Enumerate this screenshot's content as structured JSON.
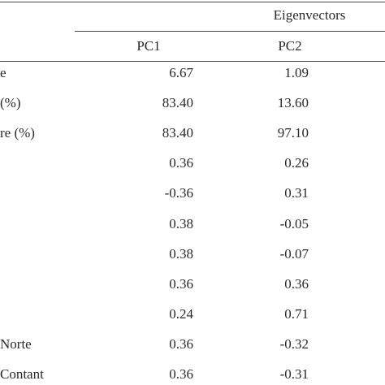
{
  "table": {
    "group_header": "Eigenvectors",
    "columns": [
      "PC1",
      "PC2"
    ],
    "rows": [
      [
        "e",
        "6.67",
        "1.09"
      ],
      [
        "(%)",
        "83.40",
        "13.60"
      ],
      [
        "re (%)",
        "83.40",
        "97.10"
      ],
      [
        null,
        "0.36",
        "0.26"
      ],
      [
        null,
        "-0.36",
        "0.31"
      ],
      [
        null,
        "0.38",
        "-0.05"
      ],
      [
        null,
        "0.38",
        "-0.07"
      ],
      [
        null,
        "0.36",
        "0.36"
      ],
      [
        null,
        "0.24",
        "0.71"
      ],
      [
        "Norte",
        "0.36",
        "-0.32"
      ],
      [
        "Contant",
        "0.36",
        "-0.31"
      ]
    ]
  }
}
